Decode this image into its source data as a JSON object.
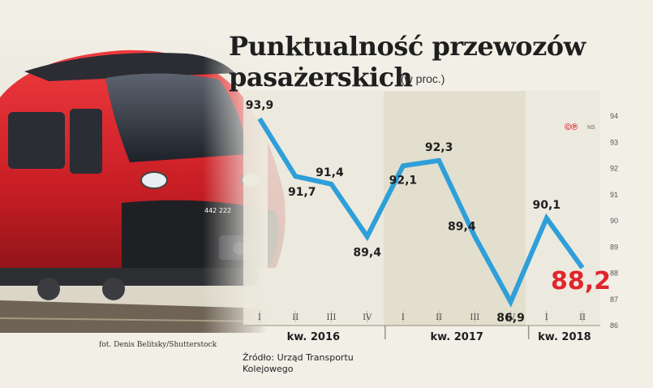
{
  "title_line1": "Punktualność przewozów",
  "title_line2": "pasażerskich",
  "subtitle": "(w proc.)",
  "photo_credit": "fot. Denis Belitsky/Shutterstock",
  "source": "Źródło: Urząd Transportu Kolejowego",
  "badge": "©℗",
  "badge_suffix": "NS",
  "train_number": "442 222",
  "colors": {
    "line": "#2e9fd9",
    "highlight": "#e0262d",
    "train_red": "#d9262c",
    "band": "#e2decc"
  },
  "chart_data": {
    "type": "line",
    "title": "Punktualność przewozów pasażerskich",
    "subtitle": "(w proc.)",
    "x": [
      "I",
      "II",
      "III",
      "IV",
      "I",
      "II",
      "III",
      "IV",
      "I",
      "II"
    ],
    "groups": [
      {
        "label": "kw. 2016",
        "quarters": [
          "I",
          "II",
          "III",
          "IV"
        ]
      },
      {
        "label": "kw. 2017",
        "quarters": [
          "I",
          "II",
          "III",
          "IV"
        ]
      },
      {
        "label": "kw. 2018",
        "quarters": [
          "I",
          "II"
        ]
      }
    ],
    "series": [
      {
        "values": [
          93.9,
          91.7,
          91.4,
          89.4,
          92.1,
          92.3,
          89.4,
          86.9,
          90.1,
          88.2
        ],
        "labels": [
          "93,9",
          "91,7",
          "91,4",
          "89,4",
          "92,1",
          "92,3",
          "89,4",
          "86,9",
          "90,1",
          "88,2"
        ]
      }
    ],
    "ylim": [
      86,
      94
    ],
    "yticks": [
      86,
      87,
      88,
      89,
      90,
      91,
      92,
      93,
      94
    ],
    "highlight_last": true,
    "legend": "none",
    "grid": false
  }
}
